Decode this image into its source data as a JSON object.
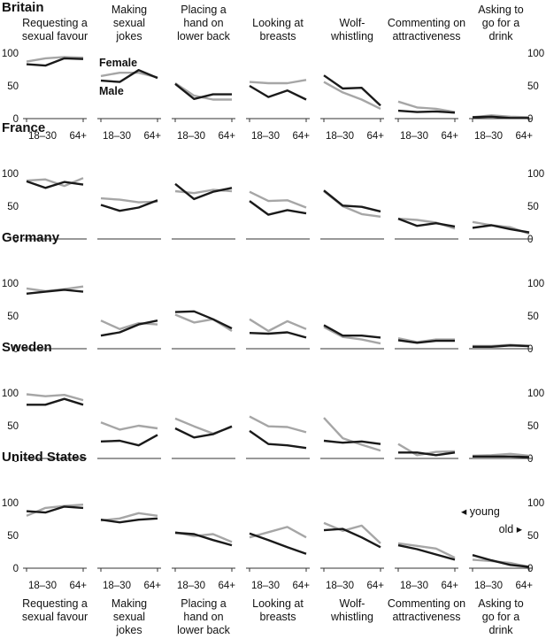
{
  "chart_data": {
    "type": "line",
    "x_tick_labels": [
      "18–30",
      "64+"
    ],
    "y_ticks": [
      0,
      50,
      100
    ],
    "ylim": [
      0,
      100
    ],
    "categories": [
      "Requesting a sexual favour",
      "Making sexual jokes",
      "Placing a hand on lower back",
      "Looking at breasts",
      "Wolf-whistling",
      "Commenting on attractiveness",
      "Asking to go for a drink"
    ],
    "column_labels": [
      [
        "Requesting a",
        "sexual favour"
      ],
      [
        "Making",
        "sexual",
        "jokes"
      ],
      [
        "Placing a",
        "hand on",
        "lower back"
      ],
      [
        "Looking at",
        "breasts"
      ],
      [
        "Wolf-",
        "whistling"
      ],
      [
        "Commenting on",
        "attractiveness"
      ],
      [
        "Asking to",
        "go for a",
        "drink"
      ]
    ],
    "series_names": [
      "Female",
      "Male"
    ],
    "series_colors": {
      "Female": "#a6a6a6",
      "Male": "#1a1a1a"
    },
    "legend": {
      "female": "Female",
      "male": "Male",
      "young": "young",
      "old": "old"
    },
    "age_axis_labels": {
      "young": "◂ young",
      "old": "old ▸"
    },
    "countries": [
      {
        "name": "Britain",
        "panels": [
          {
            "female": [
              87,
              92,
              94,
              93
            ],
            "male": [
              83,
              81,
              92,
              91
            ]
          },
          {
            "female": [
              65,
              70,
              70,
              63
            ],
            "male": [
              58,
              56,
              74,
              62
            ]
          },
          {
            "female": [
              54,
              35,
              29,
              29
            ],
            "male": [
              53,
              30,
              37,
              37
            ]
          },
          {
            "female": [
              56,
              54,
              54,
              59
            ],
            "male": [
              50,
              33,
              43,
              29
            ]
          },
          {
            "female": [
              56,
              40,
              29,
              15
            ],
            "male": [
              66,
              46,
              47,
              20
            ]
          },
          {
            "female": [
              26,
              17,
              15,
              10
            ],
            "male": [
              12,
              10,
              11,
              9
            ]
          },
          {
            "female": [
              2,
              5,
              3,
              2
            ],
            "male": [
              2,
              3,
              1,
              1
            ]
          }
        ]
      },
      {
        "name": "France",
        "panels": [
          {
            "female": [
              89,
              91,
              81,
              93
            ],
            "male": [
              88,
              78,
              87,
              83
            ]
          },
          {
            "female": [
              62,
              60,
              56,
              57
            ],
            "male": [
              52,
              43,
              48,
              59
            ]
          },
          {
            "female": [
              73,
              70,
              75,
              73
            ],
            "male": [
              84,
              61,
              72,
              78
            ]
          },
          {
            "female": [
              72,
              58,
              59,
              48
            ],
            "male": [
              58,
              37,
              44,
              39
            ]
          },
          {
            "female": [
              73,
              50,
              38,
              34
            ],
            "male": [
              74,
              51,
              49,
              42
            ]
          },
          {
            "female": [
              31,
              29,
              25,
              16
            ],
            "male": [
              31,
              20,
              24,
              19
            ]
          },
          {
            "female": [
              26,
              21,
              18,
              8
            ],
            "male": [
              17,
              21,
              15,
              10
            ]
          }
        ]
      },
      {
        "name": "Germany",
        "panels": [
          {
            "female": [
              92,
              88,
              91,
              95
            ],
            "male": [
              84,
              87,
              90,
              87
            ]
          },
          {
            "female": [
              43,
              30,
              39,
              37
            ],
            "male": [
              20,
              25,
              37,
              43
            ]
          },
          {
            "female": [
              52,
              40,
              45,
              27
            ],
            "male": [
              56,
              57,
              45,
              31
            ]
          },
          {
            "female": [
              45,
              27,
              42,
              30
            ],
            "male": [
              24,
              23,
              25,
              17
            ]
          },
          {
            "female": [
              33,
              18,
              14,
              8
            ],
            "male": [
              36,
              20,
              20,
              17
            ]
          },
          {
            "female": [
              16,
              10,
              14,
              14
            ],
            "male": [
              13,
              9,
              12,
              12
            ]
          },
          {
            "female": [
              4,
              4,
              6,
              4
            ],
            "male": [
              3,
              3,
              5,
              4
            ]
          }
        ]
      },
      {
        "name": "Sweden",
        "panels": [
          {
            "female": [
              98,
              95,
              97,
              89
            ],
            "male": [
              82,
              82,
              91,
              82
            ]
          },
          {
            "female": [
              55,
              44,
              50,
              46
            ],
            "male": [
              26,
              27,
              20,
              36
            ]
          },
          {
            "female": [
              61,
              49,
              38,
              48
            ],
            "male": [
              46,
              32,
              37,
              49
            ]
          },
          {
            "female": [
              64,
              49,
              48,
              40
            ],
            "male": [
              42,
              22,
              20,
              16
            ]
          },
          {
            "female": [
              62,
              31,
              21,
              12
            ],
            "male": [
              27,
              24,
              26,
              22
            ]
          },
          {
            "female": [
              22,
              5,
              10,
              11
            ],
            "male": [
              9,
              9,
              5,
              9
            ]
          },
          {
            "female": [
              4,
              5,
              7,
              4
            ],
            "male": [
              3,
              3,
              3,
              2
            ]
          }
        ]
      },
      {
        "name": "United States",
        "panels": [
          {
            "female": [
              80,
              92,
              95,
              97
            ],
            "male": [
              87,
              85,
              94,
              92
            ]
          },
          {
            "female": [
              73,
              76,
              84,
              80
            ],
            "male": [
              74,
              70,
              74,
              76
            ]
          },
          {
            "female": [
              55,
              49,
              52,
              40
            ],
            "male": [
              54,
              52,
              43,
              35
            ]
          },
          {
            "female": [
              47,
              55,
              63,
              47
            ],
            "male": [
              53,
              43,
              32,
              22
            ]
          },
          {
            "female": [
              69,
              57,
              65,
              38
            ],
            "male": [
              58,
              60,
              47,
              32
            ]
          },
          {
            "female": [
              38,
              34,
              30,
              16
            ],
            "male": [
              35,
              29,
              21,
              13
            ]
          },
          {
            "female": [
              13,
              11,
              8,
              2
            ],
            "male": [
              20,
              12,
              5,
              2
            ]
          }
        ]
      }
    ]
  }
}
